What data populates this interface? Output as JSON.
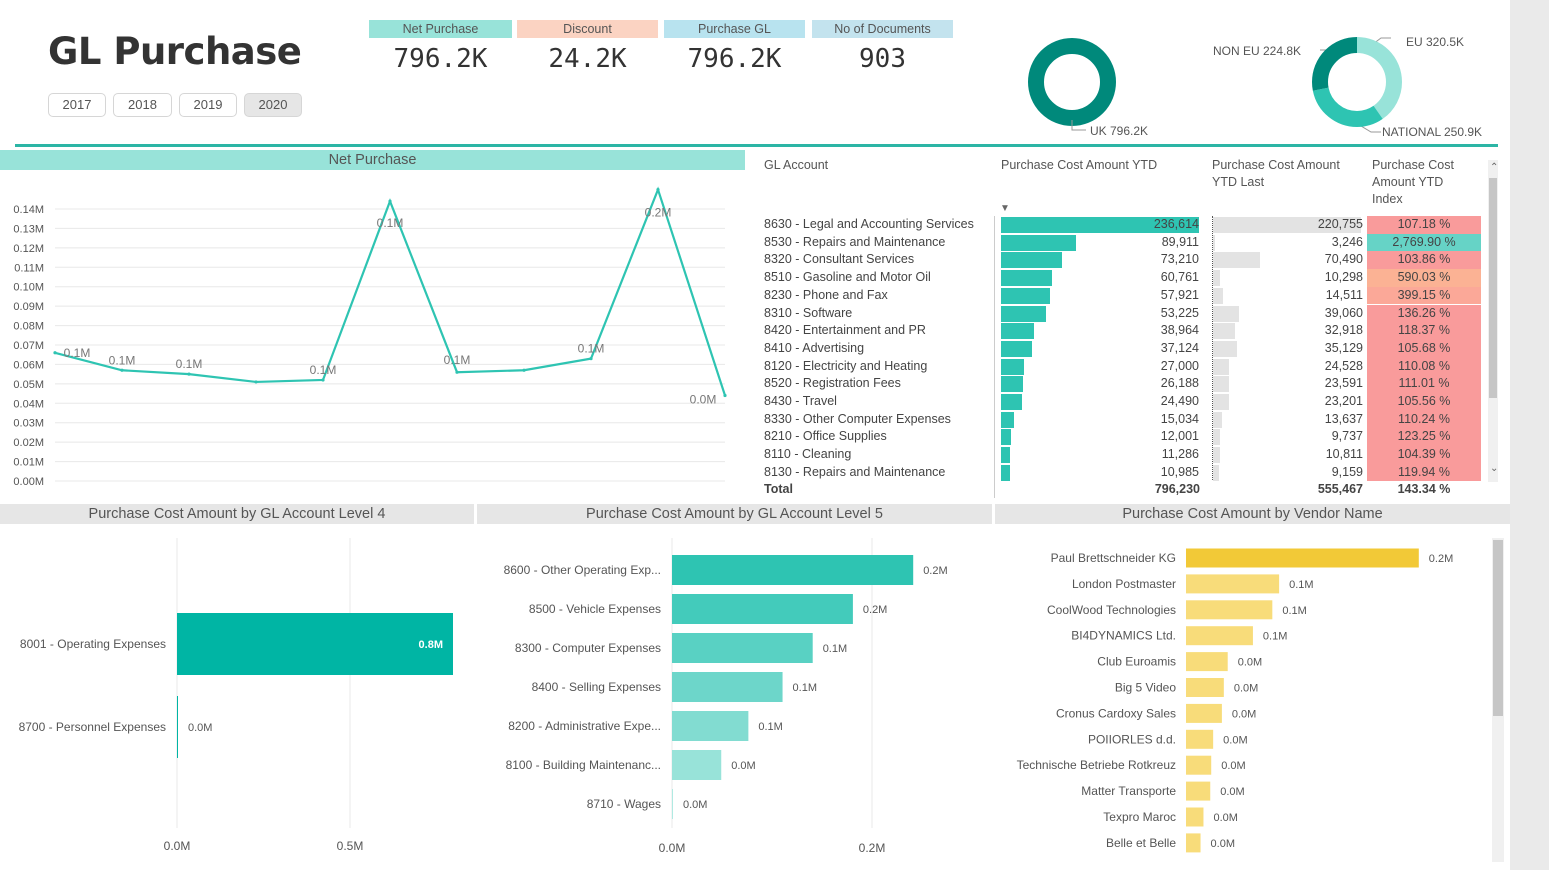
{
  "title": "GL Purchase",
  "years": [
    {
      "label": "2017",
      "active": false
    },
    {
      "label": "2018",
      "active": false
    },
    {
      "label": "2019",
      "active": false
    },
    {
      "label": "2020",
      "active": true
    }
  ],
  "kpis": [
    {
      "label": "Net Purchase",
      "value": "796.2K",
      "color": "#98e3d9"
    },
    {
      "label": "Discount",
      "value": "24.2K",
      "color": "#fbd3c2"
    },
    {
      "label": "Purchase GL",
      "value": "796.2K",
      "color": "#b8e3ef"
    },
    {
      "label": "No of Documents",
      "value": "903",
      "color": "#c3e3ee"
    }
  ],
  "donut_uk": {
    "segments": [
      {
        "label": "UK 796.2K",
        "value": 796.2,
        "color": "#00897b"
      }
    ]
  },
  "donut_region": {
    "segments": [
      {
        "label": "EU 320.5K",
        "value": 320.5,
        "color": "#98e3d9"
      },
      {
        "label": "NATIONAL 250.9K",
        "value": 250.9,
        "color": "#2ec4b2"
      },
      {
        "label": "NON EU 224.8K",
        "value": 224.8,
        "color": "#00897b"
      }
    ]
  },
  "net_purchase": {
    "header": "Net Purchase",
    "chart_data": {
      "type": "line",
      "x": [
        1,
        2,
        3,
        4,
        5,
        6,
        7,
        8,
        9,
        10,
        11,
        12
      ],
      "values": [
        0.066,
        0.057,
        0.055,
        0.051,
        0.052,
        0.144,
        0.056,
        0.057,
        0.063,
        0.15,
        0.044,
        null
      ],
      "data_labels": [
        "0.1M",
        "0.1M",
        "0.1M",
        "",
        "0.1M",
        "0.1M",
        "0.1M",
        "",
        "0.1M",
        "0.2M",
        "0.0M",
        ""
      ],
      "yticks": [
        "0.14M",
        "0.13M",
        "0.12M",
        "0.11M",
        "0.10M",
        "0.09M",
        "0.08M",
        "0.07M",
        "0.06M",
        "0.05M",
        "0.04M",
        "0.03M",
        "0.02M",
        "0.01M",
        "0.00M"
      ],
      "ylim": [
        0,
        0.14
      ],
      "color": "#2ec4b2"
    }
  },
  "table": {
    "headers": {
      "account": "GL Account",
      "ytd": "Purchase Cost Amount YTD",
      "ytd_last_1": "Purchase Cost Amount",
      "ytd_last_2": "YTD Last",
      "index_1": "Purchase Cost",
      "index_2": "Amount YTD",
      "index_3": "Index"
    },
    "rows": [
      {
        "account": "8630 - Legal and Accounting Services",
        "ytd": "236,614",
        "ytd_num": 236614,
        "last": "220,755",
        "last_num": 220755,
        "index": "107.18 %",
        "index_color": "#f99b9b"
      },
      {
        "account": "8530 - Repairs and Maintenance",
        "ytd": "89,911",
        "ytd_num": 89911,
        "last": "3,246",
        "last_num": 3246,
        "index": "2,769.90 %",
        "index_color": "#66d3c6"
      },
      {
        "account": "8320 - Consultant Services",
        "ytd": "73,210",
        "ytd_num": 73210,
        "last": "70,490",
        "last_num": 70490,
        "index": "103.86 %",
        "index_color": "#f99b9b"
      },
      {
        "account": "8510 - Gasoline and Motor Oil",
        "ytd": "60,761",
        "ytd_num": 60761,
        "last": "10,298",
        "last_num": 10298,
        "index": "590.03 %",
        "index_color": "#fbb294"
      },
      {
        "account": "8230 - Phone and Fax",
        "ytd": "57,921",
        "ytd_num": 57921,
        "last": "14,511",
        "last_num": 14511,
        "index": "399.15 %",
        "index_color": "#fba898"
      },
      {
        "account": "8310 - Software",
        "ytd": "53,225",
        "ytd_num": 53225,
        "last": "39,060",
        "last_num": 39060,
        "index": "136.26 %",
        "index_color": "#f99b9b"
      },
      {
        "account": "8420 - Entertainment and PR",
        "ytd": "38,964",
        "ytd_num": 38964,
        "last": "32,918",
        "last_num": 32918,
        "index": "118.37 %",
        "index_color": "#f99b9b"
      },
      {
        "account": "8410 - Advertising",
        "ytd": "37,124",
        "ytd_num": 37124,
        "last": "35,129",
        "last_num": 35129,
        "index": "105.68 %",
        "index_color": "#f99b9b"
      },
      {
        "account": "8120 - Electricity and Heating",
        "ytd": "27,000",
        "ytd_num": 27000,
        "last": "24,528",
        "last_num": 24528,
        "index": "110.08 %",
        "index_color": "#f99b9b"
      },
      {
        "account": "8520 - Registration Fees",
        "ytd": "26,188",
        "ytd_num": 26188,
        "last": "23,591",
        "last_num": 23591,
        "index": "111.01 %",
        "index_color": "#f99b9b"
      },
      {
        "account": "8430 - Travel",
        "ytd": "24,490",
        "ytd_num": 24490,
        "last": "23,201",
        "last_num": 23201,
        "index": "105.56 %",
        "index_color": "#f99b9b"
      },
      {
        "account": "8330 - Other Computer Expenses",
        "ytd": "15,034",
        "ytd_num": 15034,
        "last": "13,637",
        "last_num": 13637,
        "index": "110.24 %",
        "index_color": "#f99b9b"
      },
      {
        "account": "8210 - Office Supplies",
        "ytd": "12,001",
        "ytd_num": 12001,
        "last": "9,737",
        "last_num": 9737,
        "index": "123.25 %",
        "index_color": "#f99b9b"
      },
      {
        "account": "8110 - Cleaning",
        "ytd": "11,286",
        "ytd_num": 11286,
        "last": "10,811",
        "last_num": 10811,
        "index": "104.39 %",
        "index_color": "#f99b9b"
      },
      {
        "account": "8130 - Repairs and Maintenance",
        "ytd": "10,985",
        "ytd_num": 10985,
        "last": "9,159",
        "last_num": 9159,
        "index": "119.94 %",
        "index_color": "#f99b9b"
      }
    ],
    "total": {
      "label": "Total",
      "ytd": "796,230",
      "last": "555,467",
      "index": "143.34 %"
    }
  },
  "level4": {
    "header": "Purchase Cost Amount by GL Account Level 4",
    "chart_data": {
      "type": "bar",
      "orientation": "horizontal",
      "categories": [
        "8001 - Operating Expenses",
        "8700 - Personnel Expenses"
      ],
      "values": [
        0.8,
        0.0
      ],
      "data_labels": [
        "0.8M",
        "0.0M"
      ],
      "xticks": [
        "0.0M",
        "0.5M"
      ],
      "color": "#00b5a4"
    }
  },
  "level5": {
    "header": "Purchase Cost Amount by GL Account Level 5",
    "chart_data": {
      "type": "bar",
      "orientation": "horizontal",
      "categories": [
        "8600 - Other Operating Exp...",
        "8500 - Vehicle Expenses",
        "8300 - Computer Expenses",
        "8400 - Selling Expenses",
        "8200 - Administrative Expe...",
        "8100 - Building Maintenanc...",
        "8710 - Wages"
      ],
      "values": [
        0.24,
        0.18,
        0.14,
        0.11,
        0.076,
        0.049,
        0.0
      ],
      "data_labels": [
        "0.2M",
        "0.2M",
        "0.1M",
        "0.1M",
        "0.1M",
        "0.0M",
        "0.0M"
      ],
      "colors": [
        "#2ec4b2",
        "#43cbbb",
        "#59d1c3",
        "#6dd6ca",
        "#82dcd1",
        "#98e3d9",
        "#b0eae2"
      ],
      "xticks": [
        "0.0M",
        "0.2M"
      ]
    }
  },
  "vendors": {
    "header": "Purchase Cost Amount by Vendor Name",
    "chart_data": {
      "type": "bar",
      "orientation": "horizontal",
      "categories": [
        "Paul Brettschneider KG",
        "London Postmaster",
        "CoolWood Technologies",
        "BI4DYNAMICS Ltd.",
        "Club Euroamis",
        "Big 5 Video",
        "Cronus Cardoxy Sales",
        "POIIORLES d.d.",
        "Technische Betriebe Rotkreuz",
        "Matter Transporte",
        "Texpro Maroc",
        "Belle et Belle"
      ],
      "values": [
        0.24,
        0.096,
        0.089,
        0.069,
        0.043,
        0.039,
        0.037,
        0.028,
        0.026,
        0.025,
        0.018,
        0.015
      ],
      "data_labels": [
        "0.2M",
        "0.1M",
        "0.1M",
        "0.1M",
        "0.0M",
        "0.0M",
        "0.0M",
        "0.0M",
        "0.0M",
        "0.0M",
        "0.0M",
        "0.0M"
      ],
      "colors": [
        "#f2c937",
        "#f8dc7a"
      ]
    }
  }
}
